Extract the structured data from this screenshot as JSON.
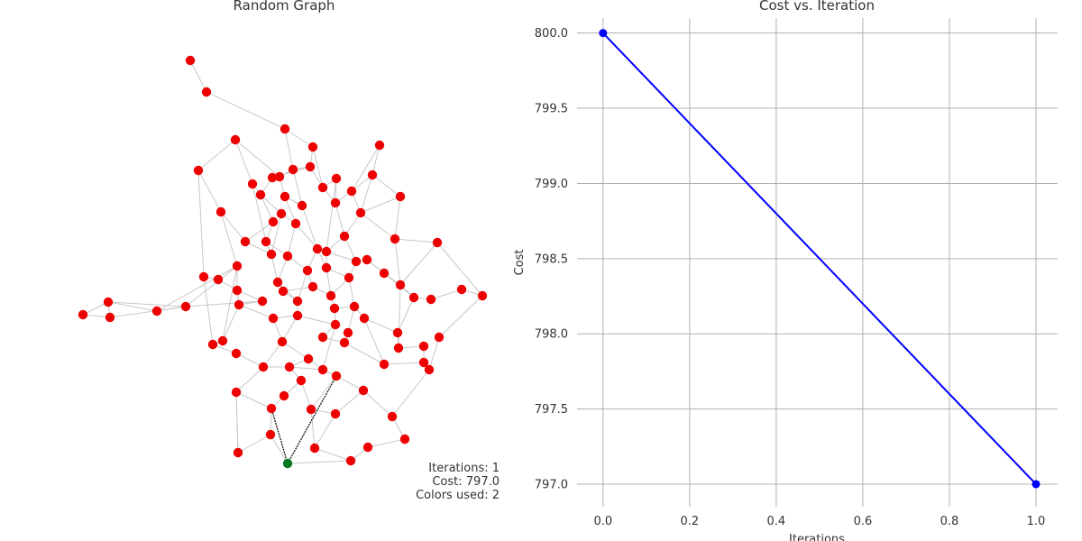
{
  "chart_data": [
    {
      "type": "network",
      "title": "Random Graph",
      "annotation": {
        "lines": [
          "Iterations: 1",
          "Cost: 797.0",
          "Colors used: 2"
        ]
      },
      "colors": {
        "node": "#ee0000",
        "highlight_node": "#007a1f",
        "edge": "#c8c8c8",
        "highlight_edge": "#000000"
      }
    },
    {
      "type": "line",
      "title": "Cost vs. Iteration",
      "xlabel": "Iterations",
      "ylabel": "Cost",
      "x": [
        0,
        1
      ],
      "y": [
        800.0,
        797.0
      ],
      "xlim": [
        -0.06,
        1.05
      ],
      "ylim": [
        796.85,
        800.1
      ],
      "x_ticks": [
        "0.0",
        "0.2",
        "0.4",
        "0.6",
        "0.8",
        "1.0"
      ],
      "y_ticks": [
        "800.0",
        "799.5",
        "799.0",
        "798.5",
        "798.0",
        "797.5",
        "797.0"
      ],
      "grid": true,
      "line_color": "#0000ff"
    }
  ]
}
